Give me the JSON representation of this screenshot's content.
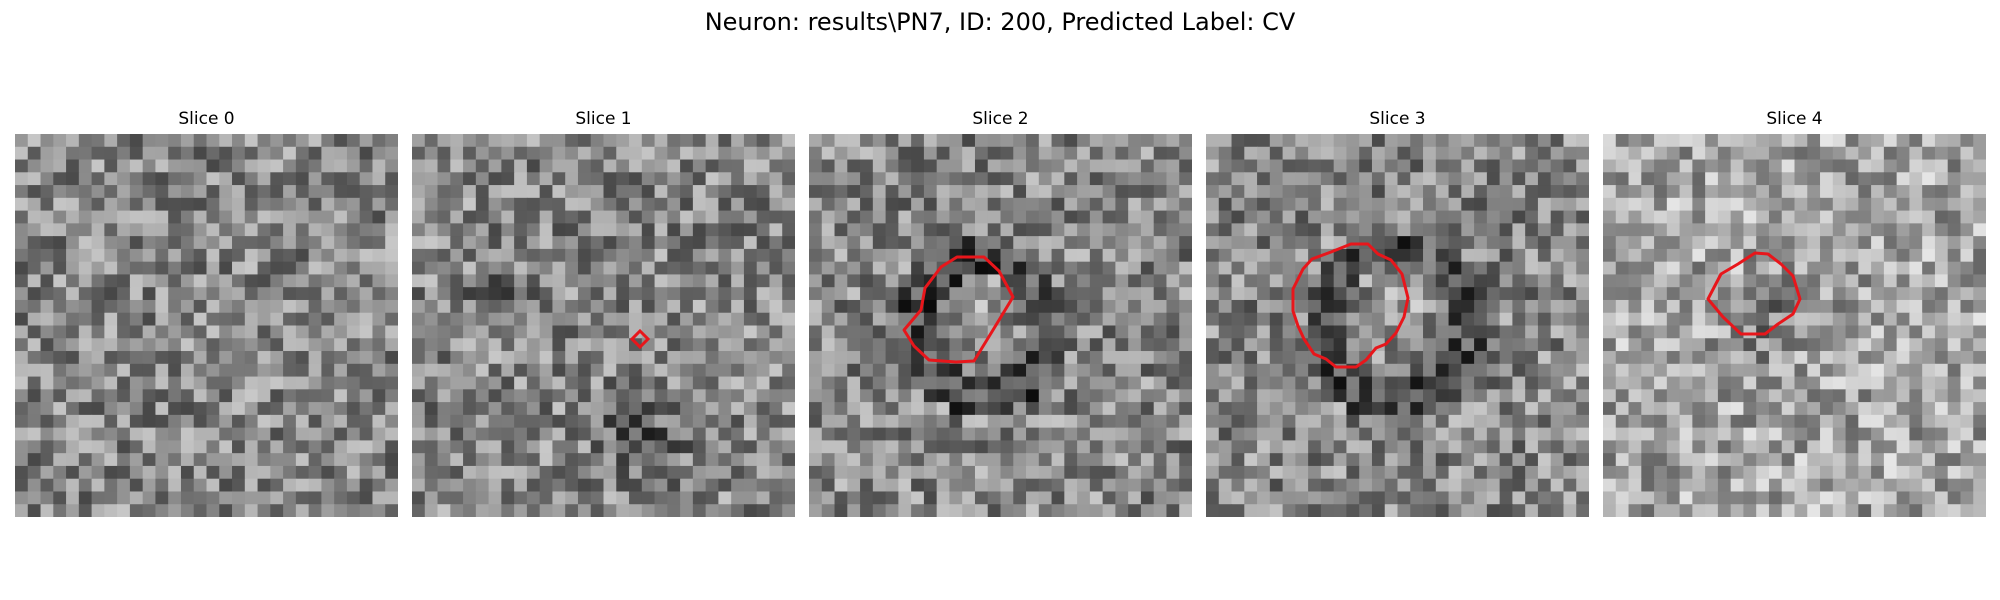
{
  "figure": {
    "title": "Neuron: results\\PN7, ID: 200, Predicted Label: CV"
  },
  "colors": {
    "contour": "#e8161b",
    "background": "#ffffff"
  },
  "slices": [
    {
      "title": "Slice 0",
      "mask": "none"
    },
    {
      "title": "Slice 1",
      "mask": "tiny-diamond"
    },
    {
      "title": "Slice 2",
      "mask": "red-contour"
    },
    {
      "title": "Slice 3",
      "mask": "red-contour"
    },
    {
      "title": "Slice 4",
      "mask": "red-contour"
    }
  ]
}
